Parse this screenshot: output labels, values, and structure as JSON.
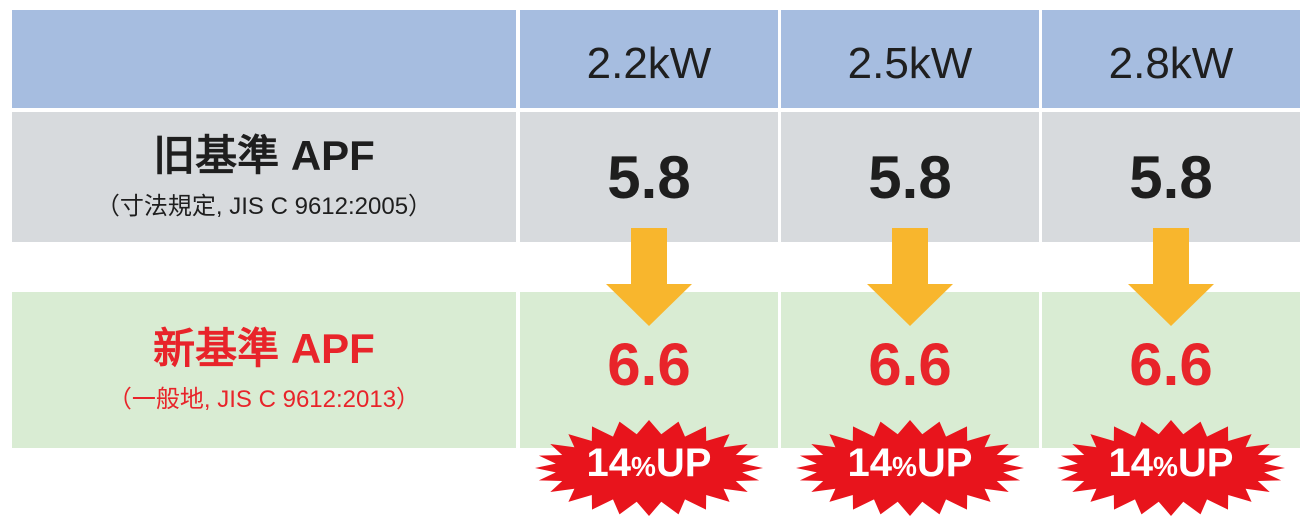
{
  "chart_data": {
    "type": "table",
    "columns": [
      "2.2kW",
      "2.5kW",
      "2.8kW"
    ],
    "rows": [
      {
        "label": "旧基準 APF",
        "sublabel": "（寸法規定, JIS C 9612:2005）",
        "values": [
          "5.8",
          "5.8",
          "5.8"
        ]
      },
      {
        "label": "新基準 APF",
        "sublabel": "（一般地, JIS C 9612:2013）",
        "values": [
          "6.6",
          "6.6",
          "6.6"
        ]
      }
    ],
    "badges": [
      {
        "value": "14",
        "unit": "%",
        "suffix": "UP"
      },
      {
        "value": "14",
        "unit": "%",
        "suffix": "UP"
      },
      {
        "value": "14",
        "unit": "%",
        "suffix": "UP"
      }
    ]
  },
  "colors": {
    "header_bg": "#a6bde0",
    "old_row_bg": "#d7dadd",
    "new_row_bg": "#d9ecd3",
    "new_text": "#e8242a",
    "arrow": "#f8b62d",
    "burst": "#e8141c"
  }
}
